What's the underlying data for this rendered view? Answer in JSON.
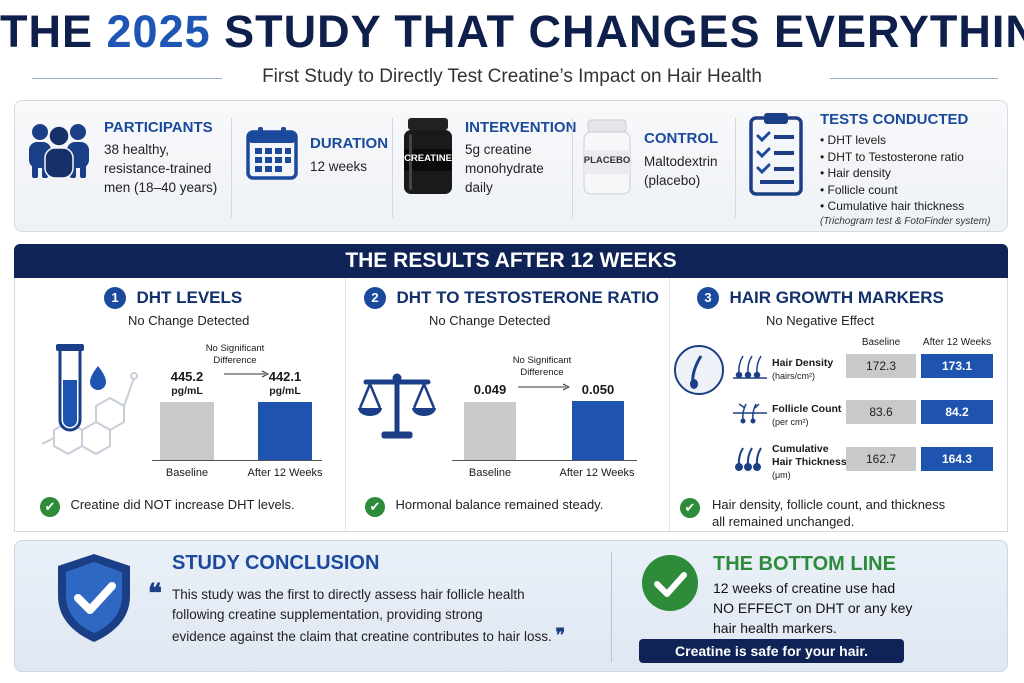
{
  "header": {
    "title_pre": "THE ",
    "title_year": "2025",
    "title_post": " STUDY THAT CHANGES EVERYTHING",
    "subtitle": "First Study to Directly Test Creatine’s Impact on Hair Health"
  },
  "overview": {
    "participants": {
      "label": "PARTICIPANTS",
      "l1": "38 healthy,",
      "l2": "resistance-trained",
      "l3": "men (18–40 years)"
    },
    "duration": {
      "label": "DURATION",
      "text": "12 weeks"
    },
    "intervention": {
      "label": "INTERVENTION",
      "jar": "CREATINE",
      "l1": "5g creatine",
      "l2": "monohydrate",
      "l3": "daily"
    },
    "control": {
      "label": "CONTROL",
      "jar": "PLACEBO",
      "l1": "Maltodextrin",
      "l2": "(placebo)"
    },
    "tests": {
      "label": "TESTS CONDUCTED",
      "items": [
        "DHT levels",
        "DHT to Testosterone ratio",
        "Hair density",
        "Follicle count",
        "Cumulative hair thickness"
      ],
      "note": "(Trichogram test & FotoFinder system)"
    }
  },
  "results_title": "THE RESULTS AFTER 12 WEEKS",
  "panel1": {
    "num": "1",
    "title": "DHT LEVELS",
    "sub": "No Change Detected",
    "note_l1": "No Significant",
    "note_l2": "Difference",
    "baseline_val": "445.2",
    "baseline_unit": "pg/mL",
    "after_val": "442.1",
    "after_unit": "pg/mL",
    "baseline_lbl": "Baseline",
    "after_lbl": "After 12 Weeks",
    "foot": "Creatine did NOT increase DHT levels."
  },
  "panel2": {
    "num": "2",
    "title": "DHT TO TESTOSTERONE RATIO",
    "sub": "No Change Detected",
    "note_l1": "No Significant",
    "note_l2": "Difference",
    "baseline_val": "0.049",
    "after_val": "0.050",
    "baseline_lbl": "Baseline",
    "after_lbl": "After 12 Weeks",
    "foot": "Hormonal balance remained steady."
  },
  "panel3": {
    "num": "3",
    "title": "HAIR GROWTH MARKERS",
    "sub": "No Negative Effect",
    "col_baseline": "Baseline",
    "col_after": "After 12 Weeks",
    "rows": [
      {
        "l1": "Hair Density",
        "l2": "",
        "unit": "(hairs/cm²)",
        "base": "172.3",
        "after": "173.1"
      },
      {
        "l1": "Follicle Count",
        "l2": "",
        "unit": "(per cm²)",
        "base": "83.6",
        "after": "84.2"
      },
      {
        "l1": "Cumulative",
        "l2": "Hair Thickness",
        "unit": "(μm)",
        "base": "162.7",
        "after": "164.3"
      }
    ],
    "foot_l1": "Hair density, follicle count, and thickness",
    "foot_l2": "all remained unchanged."
  },
  "conclusion": {
    "title": "STUDY CONCLUSION",
    "l1": "This study was the first to directly assess hair follicle health",
    "l2": "following creatine supplementation, providing strong",
    "l3": "evidence against the claim that creatine contributes to hair loss."
  },
  "bottom_line": {
    "title": "THE BOTTOM LINE",
    "l1": "12 weeks of creatine use had",
    "l2": "NO EFFECT on DHT or any key",
    "l3": "hair health markers.",
    "badge": "Creatine is safe for your hair."
  },
  "colors": {
    "navy": "#0f2356",
    "blue": "#1e54b0",
    "green": "#2e8b3a",
    "grey": "#c8c9cb"
  }
}
